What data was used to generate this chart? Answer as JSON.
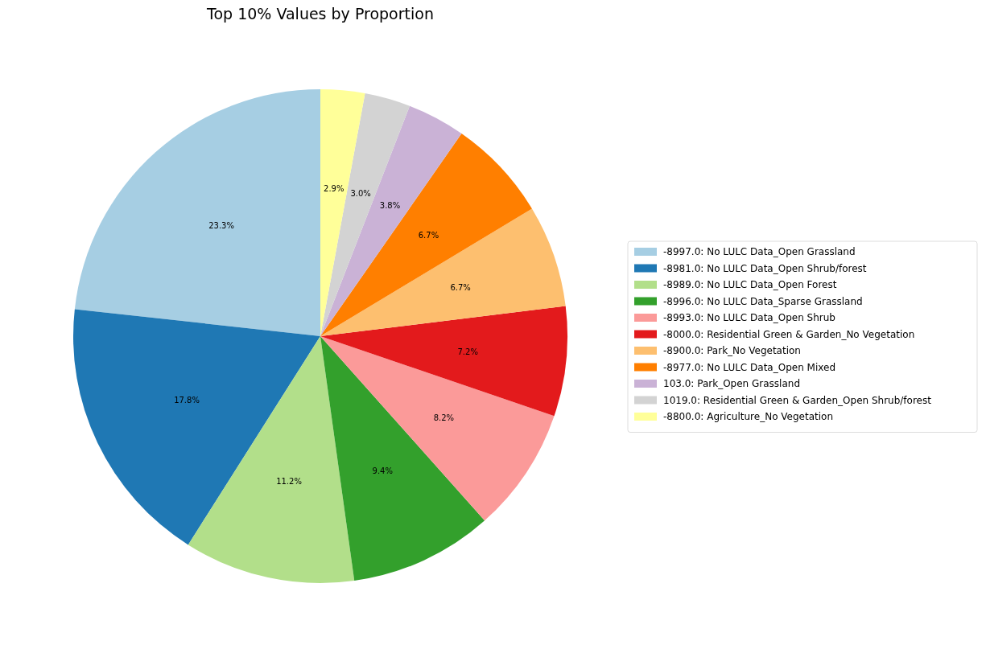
{
  "chart_data": {
    "type": "pie",
    "title": "Top 10% Values by Proportion",
    "categories": [
      "-8997.0: No LULC Data_Open Grassland",
      "-8981.0: No LULC Data_Open Shrub/forest",
      "-8989.0: No LULC Data_Open Forest",
      "-8996.0: No LULC Data_Sparse Grassland",
      "-8993.0: No LULC Data_Open Shrub",
      "-8000.0: Residential Green & Garden_No Vegetation",
      "-8900.0: Park_No Vegetation",
      "-8977.0: No LULC Data_Open Mixed",
      "103.0: Park_Open Grassland",
      "1019.0: Residential Green & Garden_Open Shrub/forest",
      "-8800.0: Agriculture_No Vegetation"
    ],
    "values": [
      23.3,
      17.8,
      11.2,
      9.4,
      8.2,
      7.2,
      6.7,
      6.7,
      3.8,
      3.0,
      2.9
    ],
    "value_labels": [
      "23.3%",
      "17.8%",
      "11.2%",
      "9.4%",
      "8.2%",
      "7.2%",
      "6.7%",
      "6.7%",
      "3.8%",
      "3.0%",
      "2.9%"
    ],
    "colors": [
      "#a6cee3",
      "#1f78b4",
      "#b2df8a",
      "#33a02c",
      "#fb9a99",
      "#e31a1c",
      "#fdbf6f",
      "#ff7f00",
      "#cab2d6",
      "#d3d3d3",
      "#ffff99"
    ],
    "legend": "right"
  }
}
